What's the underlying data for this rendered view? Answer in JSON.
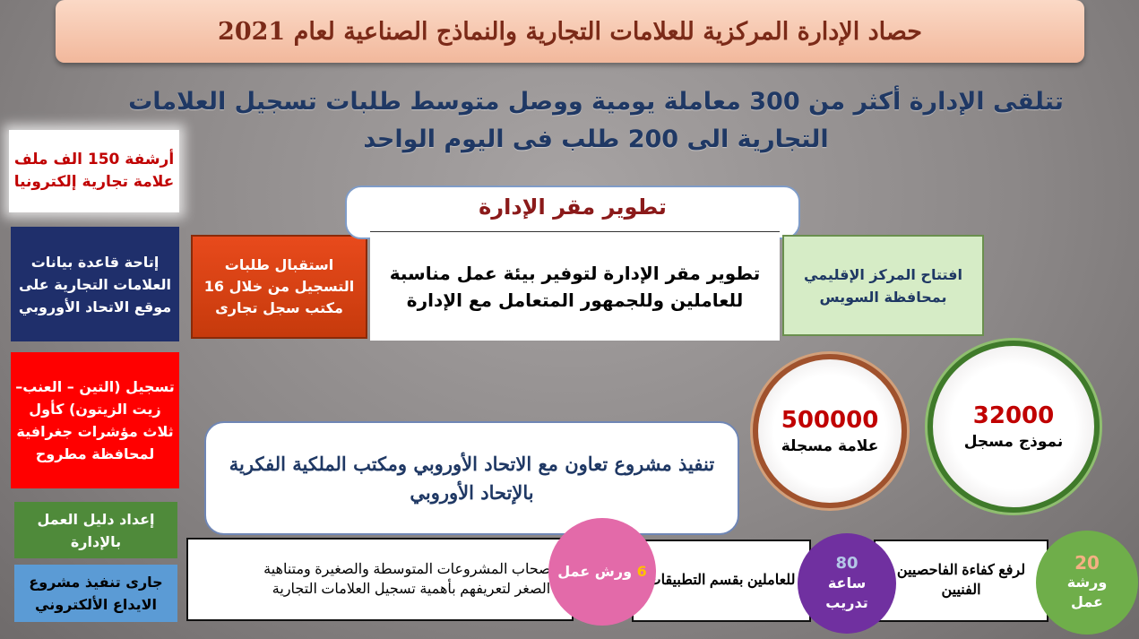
{
  "title": "حصاد الإدارة المركزية للعلامات التجارية والنماذج الصناعية لعام 2021",
  "subtitle": {
    "line1": "تتلقى الإدارة أكثر من 300 معاملة يومية ووصل متوسط طلبات تسجيل العلامات",
    "line2": "التجارية الى 200 طلب فى اليوم الواحد"
  },
  "left_boxes": [
    {
      "text": "أرشفة 150 الف ملف علامة تجارية إلكترونيا",
      "color": "#c00000"
    },
    {
      "text": "إتاحة قاعدة بيانات العلامات التجارية على موقع الاتحاد الأوروبي",
      "color": "#1f2f6b"
    },
    {
      "text": "تسجيل (التين – العنب–زيت الزيتون) كأول ثلاث مؤشرات جغرافية لمحافظة مطروح",
      "color": "#ff0000"
    },
    {
      "text": "إعداد دليل العمل بالإدارة",
      "color": "#4f8a3a"
    },
    {
      "text": "جارى تنفيذ مشروع الايداع الألكتروني",
      "color": "#5b9bd5"
    }
  ],
  "registration_offices": "استقبال طلبات التسجيل من خلال 16 مكتب سجل تجارى",
  "development": {
    "heading": "تطوير مقر الإدارة",
    "body": "تطوير مقر الإدارة لتوفير بيئة عمل مناسبة للعاملين وللجمهور المتعامل مع الإدارة"
  },
  "regional_center": "افتتاح المركز الإقليمي بمحافظة السويس",
  "stats": [
    {
      "value": "500000",
      "label": "علامة مسجلة"
    },
    {
      "value": "32000",
      "label": "نموذج مسجل"
    }
  ],
  "eu_project": "تنفيذ مشروع تعاون مع الاتحاد الأوروبي ومكتب الملكية الفكرية بالإتحاد الأوروبي",
  "trainings": [
    {
      "text": "لاصحاب المشروعات المتوسطة والصغيرة ومتناهية الصغر لتعريفهم بأهمية تسجيل العلامات التجارية",
      "badge_number": "6",
      "badge_label": "ورش عمل",
      "badge_color": "#e36aa9"
    },
    {
      "text": "للعاملين بقسم التطبيقات",
      "badge_number": "80",
      "badge_label": "ساعة تدريب",
      "badge_color": "#7030a0"
    },
    {
      "text": "لرفع كفاءة الفاحصيين الفنيين",
      "badge_number": "20",
      "badge_label": "ورشة عمل",
      "badge_color": "#6fae4a"
    }
  ]
}
